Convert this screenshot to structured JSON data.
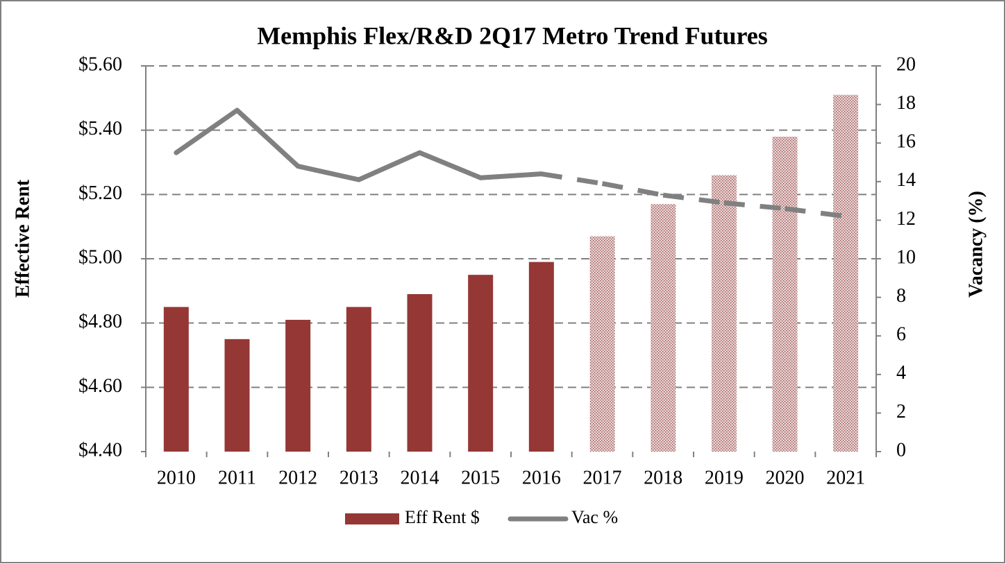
{
  "chart_data": {
    "type": "bar_line",
    "title": "Memphis Flex/R&D 2Q17 Metro Trend Futures",
    "y_label": "Effective Rent",
    "y2_label": "Vacancy (%)",
    "categories": [
      "2010",
      "2011",
      "2012",
      "2013",
      "2014",
      "2015",
      "2016",
      "2017",
      "2018",
      "2019",
      "2020",
      "2021"
    ],
    "series": [
      {
        "name": "Eff Rent $",
        "type": "bar",
        "color": "#953735",
        "values": [
          4.85,
          4.75,
          4.81,
          4.85,
          4.89,
          4.95,
          4.99,
          5.07,
          5.17,
          5.26,
          5.38,
          5.51
        ],
        "point_styles": [
          "solid",
          "solid",
          "solid",
          "solid",
          "solid",
          "solid",
          "solid",
          "stipple",
          "stipple",
          "stipple",
          "stipple",
          "stipple"
        ]
      },
      {
        "name": "Vac %",
        "type": "line",
        "axis": "y2",
        "color": "#808080",
        "values": [
          15.5,
          17.7,
          14.8,
          14.1,
          15.5,
          14.2,
          14.4,
          13.9,
          13.3,
          12.9,
          12.6,
          12.2
        ],
        "point_styles": [
          "solid",
          "solid",
          "solid",
          "solid",
          "solid",
          "solid",
          "solid",
          "dashed",
          "dashed",
          "dashed",
          "dashed",
          "dashed"
        ]
      }
    ],
    "ylim": [
      4.4,
      5.6
    ],
    "yticks": [
      {
        "value": 4.4,
        "label": "$4.40"
      },
      {
        "value": 4.6,
        "label": "$4.60"
      },
      {
        "value": 4.8,
        "label": "$4.80"
      },
      {
        "value": 5.0,
        "label": "$5.00"
      },
      {
        "value": 5.2,
        "label": "$5.20"
      },
      {
        "value": 5.4,
        "label": "$5.40"
      },
      {
        "value": 5.6,
        "label": "$5.60"
      }
    ],
    "y2lim": [
      0,
      20
    ],
    "y2ticks": [
      0,
      2,
      4,
      6,
      8,
      10,
      12,
      14,
      16,
      18,
      20
    ],
    "grid": true,
    "legend": "bottom"
  }
}
